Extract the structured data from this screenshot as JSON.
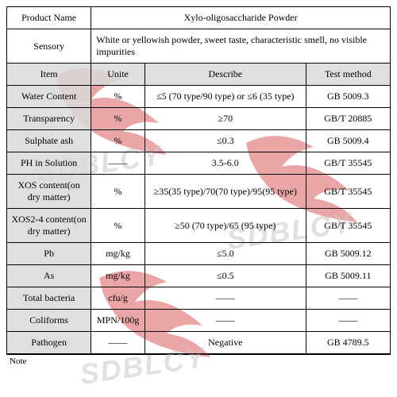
{
  "header": {
    "product_name_label": "Product Name",
    "product_name_value": "Xylo-oligosaccharide Powder",
    "sensory_label": "Sensory",
    "sensory_value": "White or yellowish powder, sweet taste, characteristic smell, no visible impurities"
  },
  "columns": {
    "item": "Item",
    "unit": "Unite",
    "describe": "Describe",
    "method": "Test method"
  },
  "rows": [
    {
      "item": "Water Content",
      "unit": "%",
      "describe": "≤5 (70 type/90 type) or ≤6 (35 type)",
      "method": "GB 5009.3"
    },
    {
      "item": "Transparency",
      "unit": "%",
      "describe": "≥70",
      "method": "GB/T  20885"
    },
    {
      "item": "Sulphate ash",
      "unit": "%",
      "describe": "≤0.3",
      "method": "GB 5009.4"
    },
    {
      "item": "PH in Solution",
      "unit": "——",
      "describe": "3.5-6.0",
      "method": "GB/T  35545"
    },
    {
      "item": "XOS content(on dry matter)",
      "unit": "%",
      "describe": "≥35(35 type)/70(70 type)/95(95 type)",
      "method": "GB/T  35545"
    },
    {
      "item": "XOS2-4 content(on dry matter)",
      "unit": "%",
      "describe": "≥50 (70 type)/65 (95 type)",
      "method": "GB/T  35545"
    },
    {
      "item": "Pb",
      "unit": "mg/kg",
      "describe": "≤5.0",
      "method": "GB 5009.12"
    },
    {
      "item": "As",
      "unit": "mg/kg",
      "describe": "≤0.5",
      "method": "GB 5009.11"
    },
    {
      "item": "Total bacteria",
      "unit": "cfu/g",
      "describe": "——",
      "method": "——"
    },
    {
      "item": "Coliforms",
      "unit": "MPN/100g",
      "describe": "——",
      "method": "——"
    },
    {
      "item": "Pathogen",
      "unit": "——",
      "describe": "Negative",
      "method": "GB 4789.5"
    }
  ],
  "note_label": "Note",
  "watermark_text": "SDBLCY",
  "colors": {
    "header_bg": "#d9d9d9",
    "border": "#000000",
    "watermark": "#c8c8c8",
    "bird": "#d23b3b"
  },
  "col_widths": [
    "22%",
    "14%",
    "42%",
    "22%"
  ]
}
